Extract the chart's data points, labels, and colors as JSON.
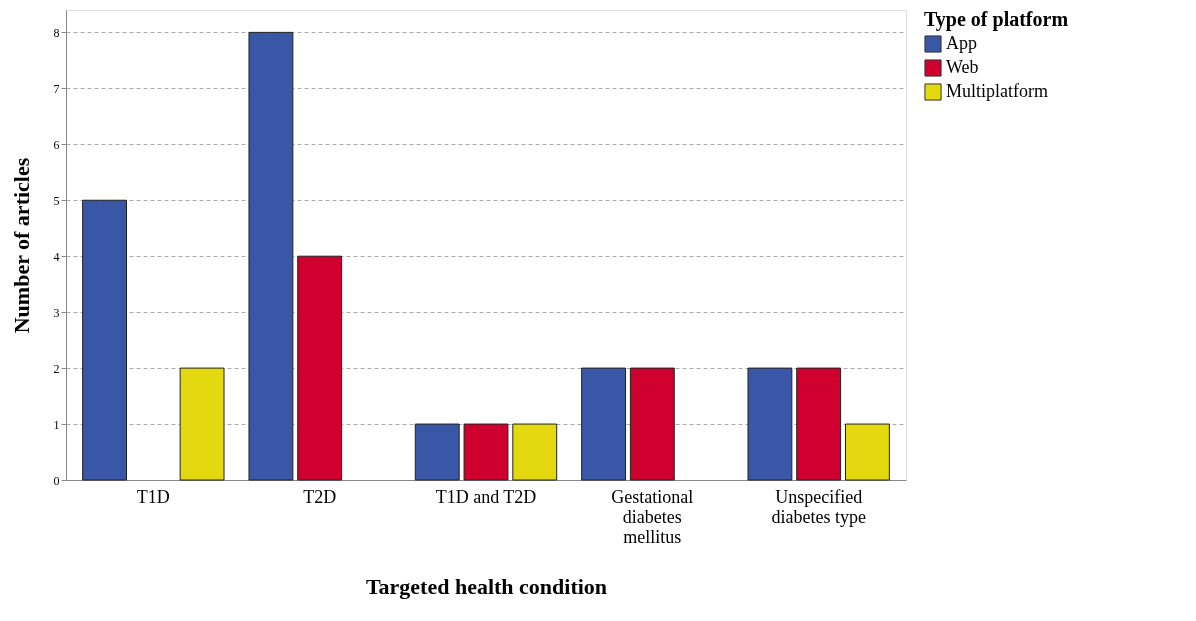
{
  "chart_data": {
    "type": "bar",
    "xlabel": "Targeted health condition",
    "ylabel": "Number of articles",
    "legend_title": "Type of platform",
    "categories": [
      "T1D",
      "T2D",
      "T1D and T2D",
      "Gestational\ndiabetes\nmellitus",
      "Unspecified\ndiabetes type"
    ],
    "series": [
      {
        "name": "App",
        "color": "#3a56a6",
        "values": [
          5,
          8,
          1,
          2,
          2
        ]
      },
      {
        "name": "Web",
        "color": "#d0002e",
        "values": [
          null,
          4,
          1,
          2,
          2
        ]
      },
      {
        "name": "Multiplatform",
        "color": "#e4d80e",
        "values": [
          2,
          null,
          1,
          null,
          1
        ]
      }
    ],
    "ylim": [
      0,
      8.4
    ],
    "yticks": [
      0,
      1,
      2,
      3,
      4,
      5,
      6,
      7,
      8
    ],
    "grid": "y",
    "legend": "top right"
  }
}
